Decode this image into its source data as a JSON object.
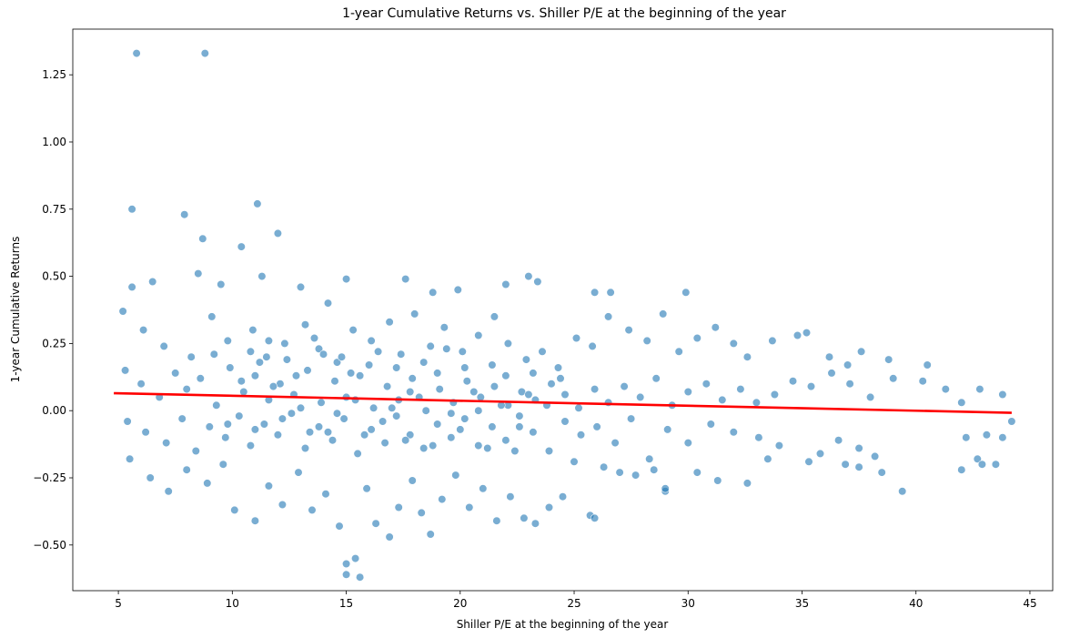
{
  "chart_data": {
    "type": "scatter",
    "title": "1-year Cumulative Returns vs. Shiller P/E at the beginning of the year",
    "xlabel": "Shiller P/E at the beginning of the year",
    "ylabel": "1-year Cumulative Returns",
    "xlim": [
      3.0,
      46.0
    ],
    "ylim": [
      -0.67,
      1.42
    ],
    "xticks": [
      5,
      10,
      15,
      20,
      25,
      30,
      35,
      40,
      45
    ],
    "yticks": [
      -0.5,
      -0.25,
      0.0,
      0.25,
      0.5,
      0.75,
      1.0,
      1.25
    ],
    "ytick_labels": [
      "−0.50",
      "−0.25",
      "0.00",
      "0.25",
      "0.50",
      "0.75",
      "1.00",
      "1.25"
    ],
    "grid": false,
    "colors": {
      "points": "#1f77b4",
      "trend": "#ff0000"
    },
    "trend_line": {
      "x": [
        4.8,
        44.2
      ],
      "y": [
        0.065,
        -0.008
      ]
    },
    "series": [
      {
        "values": [
          [
            5.8,
            1.33
          ],
          [
            8.8,
            1.33
          ],
          [
            5.6,
            0.75
          ],
          [
            11.1,
            0.77
          ],
          [
            7.9,
            0.73
          ],
          [
            12.0,
            0.66
          ],
          [
            8.7,
            0.64
          ],
          [
            10.4,
            0.61
          ],
          [
            8.5,
            0.51
          ],
          [
            11.3,
            0.5
          ],
          [
            5.2,
            0.37
          ],
          [
            5.6,
            0.46
          ],
          [
            6.5,
            0.48
          ],
          [
            9.5,
            0.47
          ],
          [
            13.0,
            0.46
          ],
          [
            15.0,
            0.49
          ],
          [
            17.6,
            0.49
          ],
          [
            18.8,
            0.44
          ],
          [
            19.9,
            0.45
          ],
          [
            22.0,
            0.47
          ],
          [
            23.0,
            0.5
          ],
          [
            23.4,
            0.48
          ],
          [
            26.6,
            0.44
          ],
          [
            25.9,
            0.44
          ],
          [
            29.9,
            0.44
          ],
          [
            6.1,
            0.3
          ],
          [
            7.0,
            0.24
          ],
          [
            8.2,
            0.2
          ],
          [
            9.1,
            0.35
          ],
          [
            9.8,
            0.26
          ],
          [
            10.9,
            0.3
          ],
          [
            11.5,
            0.2
          ],
          [
            12.3,
            0.25
          ],
          [
            13.2,
            0.32
          ],
          [
            13.8,
            0.23
          ],
          [
            14.2,
            0.4
          ],
          [
            14.6,
            0.18
          ],
          [
            15.3,
            0.3
          ],
          [
            16.1,
            0.26
          ],
          [
            16.9,
            0.33
          ],
          [
            17.4,
            0.21
          ],
          [
            18.0,
            0.36
          ],
          [
            18.7,
            0.24
          ],
          [
            19.3,
            0.31
          ],
          [
            20.1,
            0.22
          ],
          [
            20.8,
            0.28
          ],
          [
            21.5,
            0.35
          ],
          [
            22.1,
            0.25
          ],
          [
            22.9,
            0.19
          ],
          [
            23.6,
            0.22
          ],
          [
            24.3,
            0.16
          ],
          [
            25.1,
            0.27
          ],
          [
            25.8,
            0.24
          ],
          [
            26.5,
            0.35
          ],
          [
            27.4,
            0.3
          ],
          [
            28.2,
            0.26
          ],
          [
            28.9,
            0.36
          ],
          [
            29.6,
            0.22
          ],
          [
            30.4,
            0.27
          ],
          [
            31.2,
            0.31
          ],
          [
            32.0,
            0.25
          ],
          [
            32.6,
            0.2
          ],
          [
            33.7,
            0.26
          ],
          [
            34.8,
            0.28
          ],
          [
            35.2,
            0.29
          ],
          [
            36.2,
            0.2
          ],
          [
            37.0,
            0.17
          ],
          [
            37.6,
            0.22
          ],
          [
            38.8,
            0.19
          ],
          [
            40.5,
            0.17
          ],
          [
            5.3,
            0.15
          ],
          [
            6.0,
            0.1
          ],
          [
            6.8,
            0.05
          ],
          [
            7.5,
            0.14
          ],
          [
            8.0,
            0.08
          ],
          [
            8.6,
            0.12
          ],
          [
            9.3,
            0.02
          ],
          [
            9.9,
            0.16
          ],
          [
            10.5,
            0.07
          ],
          [
            11.0,
            0.13
          ],
          [
            11.6,
            0.04
          ],
          [
            12.1,
            0.1
          ],
          [
            12.7,
            0.06
          ],
          [
            13.3,
            0.15
          ],
          [
            13.9,
            0.03
          ],
          [
            14.5,
            0.11
          ],
          [
            15.0,
            0.05
          ],
          [
            15.6,
            0.13
          ],
          [
            16.2,
            0.01
          ],
          [
            16.8,
            0.09
          ],
          [
            17.3,
            0.04
          ],
          [
            17.9,
            0.12
          ],
          [
            18.5,
            0.0
          ],
          [
            19.1,
            0.08
          ],
          [
            19.7,
            0.03
          ],
          [
            20.3,
            0.11
          ],
          [
            20.9,
            0.05
          ],
          [
            21.5,
            0.09
          ],
          [
            22.1,
            0.02
          ],
          [
            22.7,
            0.07
          ],
          [
            23.3,
            0.04
          ],
          [
            24.0,
            0.1
          ],
          [
            24.6,
            0.06
          ],
          [
            25.2,
            0.01
          ],
          [
            25.9,
            0.08
          ],
          [
            26.5,
            0.03
          ],
          [
            27.2,
            0.09
          ],
          [
            27.9,
            0.05
          ],
          [
            28.6,
            0.12
          ],
          [
            29.3,
            0.02
          ],
          [
            30.0,
            0.07
          ],
          [
            30.8,
            0.1
          ],
          [
            31.5,
            0.04
          ],
          [
            32.3,
            0.08
          ],
          [
            33.0,
            0.03
          ],
          [
            33.8,
            0.06
          ],
          [
            34.6,
            0.11
          ],
          [
            35.4,
            0.09
          ],
          [
            36.3,
            0.14
          ],
          [
            37.1,
            0.1
          ],
          [
            38.0,
            0.05
          ],
          [
            39.0,
            0.12
          ],
          [
            40.3,
            0.11
          ],
          [
            41.3,
            0.08
          ],
          [
            42.0,
            0.03
          ],
          [
            42.8,
            0.08
          ],
          [
            43.8,
            0.06
          ],
          [
            44.2,
            -0.04
          ],
          [
            5.4,
            -0.04
          ],
          [
            6.2,
            -0.08
          ],
          [
            7.1,
            -0.12
          ],
          [
            7.8,
            -0.03
          ],
          [
            8.4,
            -0.15
          ],
          [
            9.0,
            -0.06
          ],
          [
            9.7,
            -0.1
          ],
          [
            10.3,
            -0.02
          ],
          [
            10.8,
            -0.13
          ],
          [
            11.4,
            -0.05
          ],
          [
            12.0,
            -0.09
          ],
          [
            12.6,
            -0.01
          ],
          [
            13.2,
            -0.14
          ],
          [
            13.8,
            -0.06
          ],
          [
            14.4,
            -0.11
          ],
          [
            14.9,
            -0.03
          ],
          [
            15.5,
            -0.16
          ],
          [
            16.1,
            -0.07
          ],
          [
            16.7,
            -0.12
          ],
          [
            17.2,
            -0.02
          ],
          [
            17.8,
            -0.09
          ],
          [
            18.4,
            -0.14
          ],
          [
            19.0,
            -0.05
          ],
          [
            19.6,
            -0.1
          ],
          [
            20.2,
            -0.03
          ],
          [
            20.8,
            -0.13
          ],
          [
            21.4,
            -0.06
          ],
          [
            22.0,
            -0.11
          ],
          [
            22.6,
            -0.02
          ],
          [
            23.2,
            -0.08
          ],
          [
            23.9,
            -0.15
          ],
          [
            24.6,
            -0.04
          ],
          [
            25.3,
            -0.09
          ],
          [
            26.0,
            -0.06
          ],
          [
            26.8,
            -0.12
          ],
          [
            27.5,
            -0.03
          ],
          [
            28.3,
            -0.18
          ],
          [
            29.1,
            -0.07
          ],
          [
            30.0,
            -0.12
          ],
          [
            31.0,
            -0.05
          ],
          [
            32.0,
            -0.08
          ],
          [
            33.1,
            -0.1
          ],
          [
            34.0,
            -0.13
          ],
          [
            36.6,
            -0.11
          ],
          [
            37.5,
            -0.14
          ],
          [
            38.2,
            -0.17
          ],
          [
            42.2,
            -0.1
          ],
          [
            43.1,
            -0.09
          ],
          [
            43.8,
            -0.1
          ],
          [
            42.7,
            -0.18
          ],
          [
            5.5,
            -0.18
          ],
          [
            6.4,
            -0.25
          ],
          [
            7.2,
            -0.3
          ],
          [
            8.0,
            -0.22
          ],
          [
            8.9,
            -0.27
          ],
          [
            9.6,
            -0.2
          ],
          [
            10.1,
            -0.37
          ],
          [
            11.0,
            -0.41
          ],
          [
            11.6,
            -0.28
          ],
          [
            12.2,
            -0.35
          ],
          [
            12.9,
            -0.23
          ],
          [
            13.5,
            -0.37
          ],
          [
            14.1,
            -0.31
          ],
          [
            14.7,
            -0.43
          ],
          [
            15.0,
            -0.57
          ],
          [
            15.0,
            -0.61
          ],
          [
            15.4,
            -0.55
          ],
          [
            15.6,
            -0.62
          ],
          [
            15.9,
            -0.29
          ],
          [
            16.3,
            -0.42
          ],
          [
            16.9,
            -0.47
          ],
          [
            17.3,
            -0.36
          ],
          [
            17.9,
            -0.26
          ],
          [
            18.3,
            -0.38
          ],
          [
            18.7,
            -0.46
          ],
          [
            19.2,
            -0.33
          ],
          [
            19.8,
            -0.24
          ],
          [
            20.4,
            -0.36
          ],
          [
            21.0,
            -0.29
          ],
          [
            21.6,
            -0.41
          ],
          [
            22.2,
            -0.32
          ],
          [
            22.8,
            -0.4
          ],
          [
            23.3,
            -0.42
          ],
          [
            23.9,
            -0.36
          ],
          [
            24.5,
            -0.32
          ],
          [
            25.0,
            -0.19
          ],
          [
            25.7,
            -0.39
          ],
          [
            25.9,
            -0.4
          ],
          [
            26.3,
            -0.21
          ],
          [
            27.0,
            -0.23
          ],
          [
            27.7,
            -0.24
          ],
          [
            28.5,
            -0.22
          ],
          [
            29.0,
            -0.3
          ],
          [
            29.0,
            -0.29
          ],
          [
            30.4,
            -0.23
          ],
          [
            31.3,
            -0.26
          ],
          [
            32.6,
            -0.27
          ],
          [
            33.5,
            -0.18
          ],
          [
            35.3,
            -0.19
          ],
          [
            35.8,
            -0.16
          ],
          [
            36.9,
            -0.2
          ],
          [
            37.5,
            -0.21
          ],
          [
            38.5,
            -0.23
          ],
          [
            39.4,
            -0.3
          ],
          [
            42.0,
            -0.22
          ],
          [
            42.9,
            -0.2
          ],
          [
            43.5,
            -0.2
          ],
          [
            10.8,
            0.22
          ],
          [
            11.2,
            0.18
          ],
          [
            11.8,
            0.09
          ],
          [
            12.4,
            0.19
          ],
          [
            13.0,
            0.01
          ],
          [
            13.6,
            0.27
          ],
          [
            14.2,
            -0.08
          ],
          [
            14.8,
            0.2
          ],
          [
            15.4,
            0.04
          ],
          [
            16.0,
            0.17
          ],
          [
            16.6,
            -0.04
          ],
          [
            17.2,
            0.16
          ],
          [
            17.8,
            0.07
          ],
          [
            18.4,
            0.18
          ],
          [
            19.0,
            0.14
          ],
          [
            19.6,
            -0.01
          ],
          [
            20.2,
            0.16
          ],
          [
            20.8,
            0.0
          ],
          [
            21.4,
            0.17
          ],
          [
            22.0,
            0.13
          ],
          [
            22.6,
            -0.06
          ],
          [
            23.2,
            0.14
          ],
          [
            23.8,
            0.02
          ],
          [
            24.4,
            0.12
          ],
          [
            9.2,
            0.21
          ],
          [
            9.8,
            -0.05
          ],
          [
            10.4,
            0.11
          ],
          [
            11.0,
            -0.07
          ],
          [
            11.6,
            0.26
          ],
          [
            12.2,
            -0.03
          ],
          [
            12.8,
            0.13
          ],
          [
            13.4,
            -0.08
          ],
          [
            14.0,
            0.21
          ],
          [
            14.6,
            -0.01
          ],
          [
            15.2,
            0.14
          ],
          [
            15.8,
            -0.09
          ],
          [
            16.4,
            0.22
          ],
          [
            17.0,
            0.01
          ],
          [
            17.6,
            -0.11
          ],
          [
            18.2,
            0.05
          ],
          [
            18.8,
            -0.13
          ],
          [
            19.4,
            0.23
          ],
          [
            20.0,
            -0.07
          ],
          [
            20.6,
            0.07
          ],
          [
            21.2,
            -0.14
          ],
          [
            21.8,
            0.02
          ],
          [
            22.4,
            -0.15
          ],
          [
            23.0,
            0.06
          ]
        ]
      }
    ]
  }
}
